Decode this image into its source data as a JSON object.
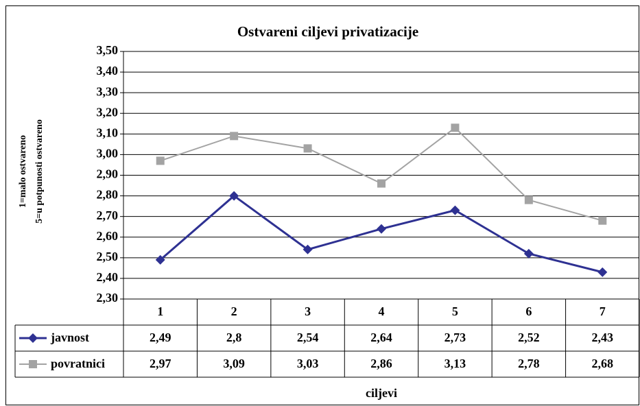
{
  "chart_data": {
    "type": "line",
    "title": "Ostvareni ciljevi privatizacije",
    "x_label": "ciljevi",
    "y_label": [
      "1=malo ostvareno",
      "5=u potpunosti ostvareno"
    ],
    "categories": [
      "1",
      "2",
      "3",
      "4",
      "5",
      "6",
      "7"
    ],
    "series": [
      {
        "name": "javnost",
        "color": "#2e3192",
        "marker": "diamond",
        "values": [
          2.49,
          2.8,
          2.54,
          2.64,
          2.73,
          2.52,
          2.43
        ],
        "value_labels": [
          "2,49",
          "2,8",
          "2,54",
          "2,64",
          "2,73",
          "2,52",
          "2,43"
        ]
      },
      {
        "name": "povratnici",
        "color": "#a3a3a3",
        "marker": "square",
        "values": [
          2.97,
          3.09,
          3.03,
          2.86,
          3.13,
          2.78,
          2.68
        ],
        "value_labels": [
          "2,97",
          "3,09",
          "3,03",
          "2,86",
          "3,13",
          "2,78",
          "2,68"
        ]
      }
    ],
    "ylim": [
      2.3,
      3.5
    ],
    "yticks": [
      {
        "value": 2.3,
        "label": "2,30"
      },
      {
        "value": 2.4,
        "label": "2,40"
      },
      {
        "value": 2.5,
        "label": "2,50"
      },
      {
        "value": 2.6,
        "label": "2,60"
      },
      {
        "value": 2.7,
        "label": "2,70"
      },
      {
        "value": 2.8,
        "label": "2,80"
      },
      {
        "value": 2.9,
        "label": "2,90"
      },
      {
        "value": 3.0,
        "label": "3,00"
      },
      {
        "value": 3.1,
        "label": "3,10"
      },
      {
        "value": 3.2,
        "label": "3,20"
      },
      {
        "value": 3.3,
        "label": "3,30"
      },
      {
        "value": 3.4,
        "label": "3,40"
      },
      {
        "value": 3.5,
        "label": "3,50"
      }
    ],
    "grid": true
  }
}
